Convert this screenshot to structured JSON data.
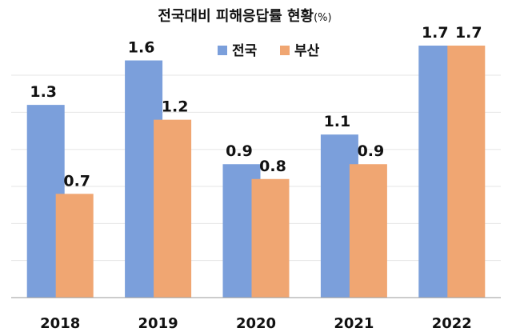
{
  "chart_data": {
    "type": "bar",
    "title": "전국대비  피해응답률 현황",
    "title_unit": "(%)",
    "categories": [
      "2018",
      "2019",
      "2020",
      "2021",
      "2022"
    ],
    "series": [
      {
        "name": "전국",
        "color": "#7B9FDB",
        "values": [
          1.3,
          1.6,
          0.9,
          1.1,
          1.7
        ]
      },
      {
        "name": "부산",
        "color": "#F0A672",
        "values": [
          0.7,
          1.2,
          0.8,
          0.9,
          1.7
        ]
      }
    ],
    "ylim": [
      0,
      1.7
    ],
    "grid": true,
    "legend_position": "top-center",
    "xlabel": "",
    "ylabel": ""
  }
}
